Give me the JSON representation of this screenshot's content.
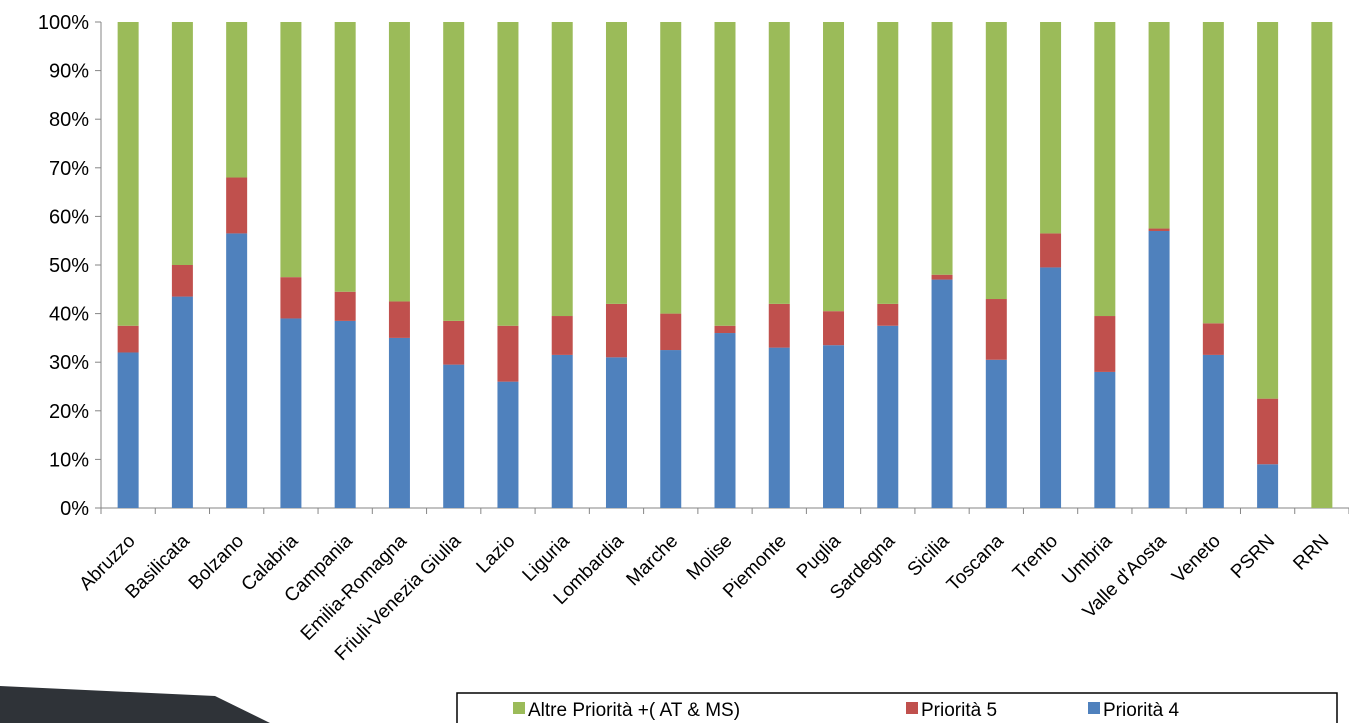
{
  "chart_data": {
    "type": "bar",
    "stacked": "percent",
    "categories": [
      "Abruzzo",
      "Basilicata",
      "Bolzano",
      "Calabria",
      "Campania",
      "Emilia-Romagna",
      "Friuli-Venezia Giulia",
      "Lazio",
      "Liguria",
      "Lombardia",
      "Marche",
      "Molise",
      "Piemonte",
      "Puglia",
      "Sardegna",
      "Sicilia",
      "Toscana",
      "Trento",
      "Umbria",
      "Valle d'Aosta",
      "Veneto",
      "PSRN",
      "RRN"
    ],
    "series": [
      {
        "name": "Priorità 4",
        "color": "#4f81bd",
        "values": [
          32,
          43.5,
          56.5,
          39,
          38.5,
          35,
          29.5,
          26,
          31.5,
          31,
          32.5,
          36,
          33,
          33.5,
          37.5,
          47,
          30.5,
          49.5,
          28,
          57,
          31.5,
          9,
          0
        ]
      },
      {
        "name": "Priorità 5",
        "color": "#c0504d",
        "values": [
          5.5,
          6.5,
          11.5,
          8.5,
          6,
          7.5,
          9,
          11.5,
          8,
          11,
          7.5,
          1.5,
          9,
          7,
          4.5,
          1,
          12.5,
          7,
          11.5,
          0.5,
          6.5,
          13.5,
          0
        ]
      },
      {
        "name": "Altre Priorità +( AT & MS)",
        "color": "#9bbb59",
        "values": [
          62.5,
          50,
          32,
          52.5,
          55.5,
          57.5,
          61.5,
          62.5,
          60.5,
          58,
          60,
          62.5,
          58,
          59.5,
          58,
          52,
          57,
          43.5,
          60.5,
          42.5,
          62,
          77.5,
          100
        ]
      }
    ],
    "legend_order": [
      "Altre Priorità +( AT & MS)",
      "Priorità 5",
      "Priorità 4"
    ],
    "ylim": [
      0,
      100
    ],
    "yticks": [
      "0%",
      "10%",
      "20%",
      "30%",
      "40%",
      "50%",
      "60%",
      "70%",
      "80%",
      "90%",
      "100%"
    ],
    "legend_position": "bottom-right",
    "grid": false
  }
}
